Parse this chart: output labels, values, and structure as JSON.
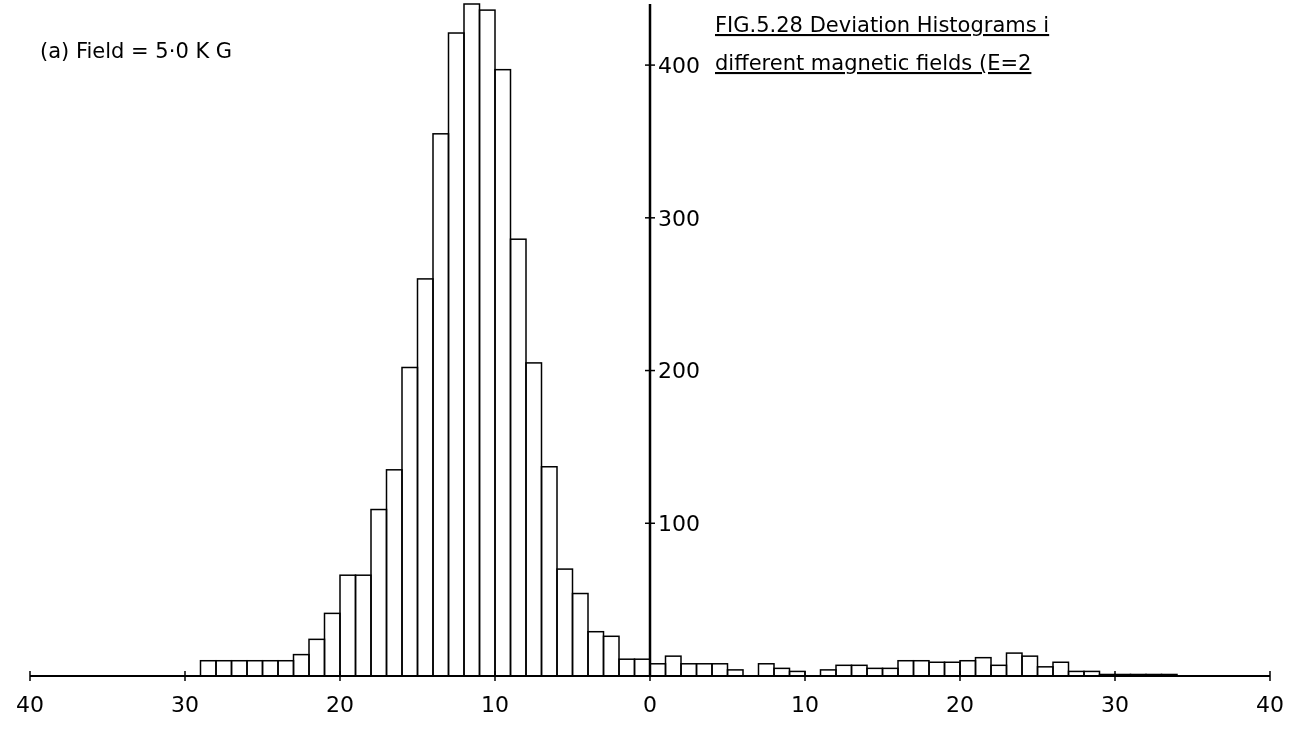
{
  "chart_data": {
    "type": "histogram",
    "title": "FIG.5.28 Deviation Histograms i",
    "subtitle": "different magnetic fields (E=2",
    "annotations": [
      "(a) Field = 5·0 K G"
    ],
    "bins": [
      -30,
      -29,
      -28,
      -27,
      -26,
      -25,
      -24,
      -23,
      -22,
      -21,
      -20,
      -19,
      -18,
      -17,
      -16,
      -15,
      -14,
      -13,
      -12,
      -11,
      -10,
      -9,
      -8,
      -7,
      -6,
      -5,
      -4,
      -3,
      -2,
      -1,
      0,
      1,
      2,
      3,
      4,
      5,
      6,
      7,
      8,
      9,
      10,
      11,
      12,
      13,
      14,
      15,
      16,
      17,
      18,
      19,
      20,
      21,
      22,
      23,
      24,
      25,
      26,
      27,
      28,
      29,
      30,
      31,
      32,
      33,
      34
    ],
    "values": [
      0,
      10,
      10,
      10,
      10,
      10,
      10,
      14,
      24,
      41,
      66,
      66,
      109,
      135,
      202,
      260,
      355,
      421,
      440,
      436,
      397,
      286,
      205,
      137,
      70,
      54,
      29,
      26,
      11,
      11,
      8,
      13,
      8,
      8,
      8,
      4,
      0,
      8,
      5,
      3,
      0,
      4,
      7,
      7,
      5,
      5,
      10,
      10,
      9,
      9,
      10,
      12,
      7,
      15,
      13,
      6,
      9,
      3,
      3,
      1,
      1,
      1,
      1,
      1
    ],
    "color": "#000000",
    "xlim": [
      -40,
      40
    ],
    "xticks": [
      {
        "value": -40,
        "label": "40"
      },
      {
        "value": -30,
        "label": "30"
      },
      {
        "value": -20,
        "label": "20"
      },
      {
        "value": -10,
        "label": "10"
      },
      0,
      10,
      20,
      30,
      40
    ],
    "ylim": [
      0,
      440
    ],
    "yticks": [
      100,
      200,
      300,
      400
    ],
    "grid": false
  }
}
